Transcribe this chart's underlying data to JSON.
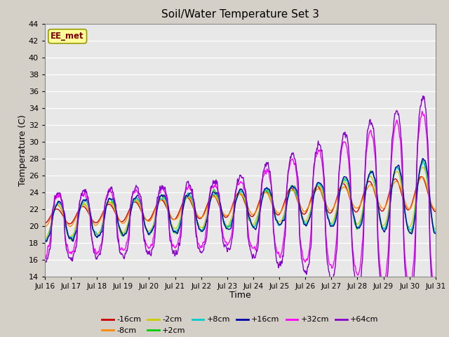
{
  "title": "Soil/Water Temperature Set 3",
  "xlabel": "Time",
  "ylabel": "Temperature (C)",
  "ylim": [
    14,
    44
  ],
  "yticks": [
    14,
    16,
    18,
    20,
    22,
    24,
    26,
    28,
    30,
    32,
    34,
    36,
    38,
    40,
    42,
    44
  ],
  "annotation": "EE_met",
  "bg_color": "#e8e8e8",
  "series": [
    {
      "label": "-16cm",
      "color": "#cc0000"
    },
    {
      "label": "-8cm",
      "color": "#ff8800"
    },
    {
      "label": "-2cm",
      "color": "#cccc00"
    },
    {
      "label": "+2cm",
      "color": "#00cc00"
    },
    {
      "label": "+8cm",
      "color": "#00cccc"
    },
    {
      "label": "+16cm",
      "color": "#0000aa"
    },
    {
      "label": "+32cm",
      "color": "#ff00ff"
    },
    {
      "label": "+64cm",
      "color": "#8800cc"
    }
  ],
  "xtick_labels": [
    "Jul 16",
    "Jul 17",
    "Jul 18",
    "Jul 19",
    "Jul 20",
    "Jul 21",
    "Jul 22",
    "Jul 23",
    "Jul 24",
    "Jul 25",
    "Jul 26",
    "Jul 27",
    "Jul 28",
    "Jul 29",
    "Jul 30",
    "Jul 31"
  ],
  "n_points": 960
}
